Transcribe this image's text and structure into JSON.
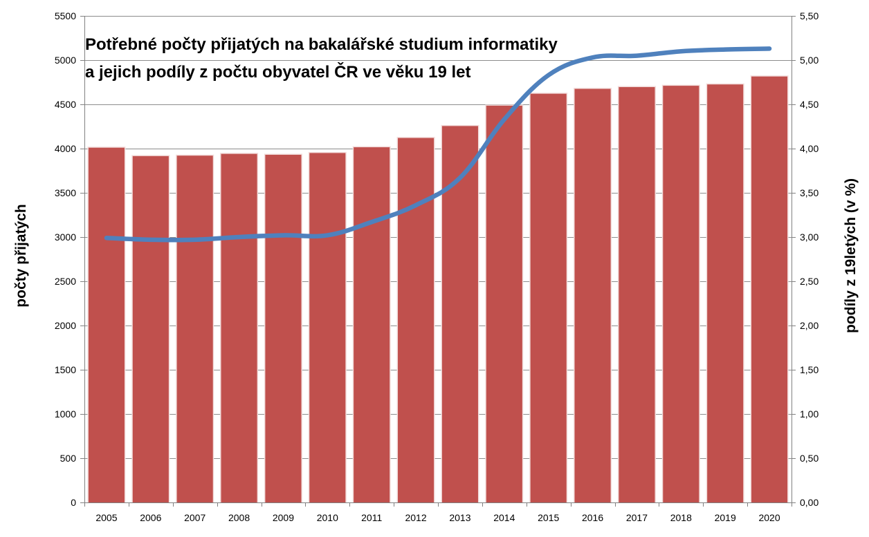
{
  "chart_data": {
    "type": "bar",
    "title_lines": [
      "Potřebné počty přijatých na bakalářské studium informatiky",
      "a jejich podíly z počtu obyvatel ČR ve věku 19 let"
    ],
    "ylabel": "počty přijatých",
    "y2label": "podíly z 19letých (v %)",
    "categories": [
      "2005",
      "2006",
      "2007",
      "2008",
      "2009",
      "2010",
      "2011",
      "2012",
      "2013",
      "2014",
      "2015",
      "2016",
      "2017",
      "2018",
      "2019",
      "2020"
    ],
    "ylim": [
      0,
      5500
    ],
    "y2lim": [
      0,
      5.5
    ],
    "y_ticks": [
      "0",
      "500",
      "1000",
      "1500",
      "2000",
      "2500",
      "3000",
      "3500",
      "4000",
      "4500",
      "5000",
      "5500"
    ],
    "y2_ticks": [
      "0,00",
      "0,50",
      "1,00",
      "1,50",
      "2,00",
      "2,50",
      "3,00",
      "3,50",
      "4,00",
      "4,50",
      "5,00",
      "5,50"
    ],
    "grid": true,
    "series": [
      {
        "type": "bar",
        "axis": "left",
        "color": "#c0504d",
        "values": [
          4010,
          3915,
          3920,
          3940,
          3930,
          3950,
          4015,
          4120,
          4255,
          4485,
          4620,
          4675,
          4695,
          4710,
          4725,
          4815
        ]
      },
      {
        "type": "line",
        "axis": "right",
        "color": "#4f81bd",
        "values": [
          2.99,
          2.97,
          2.97,
          3.0,
          3.02,
          3.02,
          3.17,
          3.36,
          3.67,
          4.33,
          4.83,
          5.03,
          5.05,
          5.1,
          5.12,
          5.13
        ]
      }
    ]
  }
}
